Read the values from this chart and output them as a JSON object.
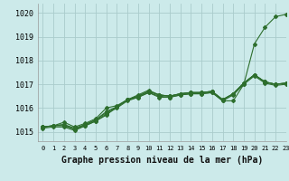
{
  "title": "Graphe pression niveau de la mer (hPa)",
  "xlim": [
    -0.5,
    23
  ],
  "ylim": [
    1014.6,
    1020.4
  ],
  "yticks": [
    1015,
    1016,
    1017,
    1018,
    1019,
    1020
  ],
  "xticks": [
    0,
    1,
    2,
    3,
    4,
    5,
    6,
    7,
    8,
    9,
    10,
    11,
    12,
    13,
    14,
    15,
    16,
    17,
    18,
    19,
    20,
    21,
    22,
    23
  ],
  "bg_color": "#cceaea",
  "grid_color": "#aacccc",
  "line_color": "#2d6e2d",
  "lines": [
    [
      1015.2,
      1015.25,
      1015.25,
      1015.1,
      1015.25,
      1015.45,
      1015.7,
      1016.05,
      1016.35,
      1016.45,
      1016.65,
      1016.5,
      1016.45,
      1016.55,
      1016.6,
      1016.6,
      1016.65,
      1016.3,
      1016.3,
      1017.0,
      1018.7,
      1019.4,
      1019.85,
      1019.95
    ],
    [
      1015.2,
      1015.25,
      1015.3,
      1015.1,
      1015.3,
      1015.5,
      1015.8,
      1016.05,
      1016.35,
      1016.5,
      1016.7,
      1016.55,
      1016.5,
      1016.6,
      1016.65,
      1016.65,
      1016.7,
      1016.35,
      1016.6,
      1017.05,
      1017.4,
      1017.1,
      1017.0,
      1017.05
    ],
    [
      1015.2,
      1015.25,
      1015.3,
      1015.15,
      1015.3,
      1015.5,
      1015.85,
      1016.05,
      1016.35,
      1016.5,
      1016.7,
      1016.55,
      1016.5,
      1016.6,
      1016.65,
      1016.65,
      1016.7,
      1016.35,
      1016.6,
      1017.05,
      1017.4,
      1017.1,
      1017.0,
      1017.05
    ],
    [
      1015.2,
      1015.25,
      1015.4,
      1015.2,
      1015.35,
      1015.55,
      1016.0,
      1016.1,
      1016.35,
      1016.55,
      1016.75,
      1016.55,
      1016.5,
      1016.6,
      1016.65,
      1016.65,
      1016.7,
      1016.35,
      1016.6,
      1017.05,
      1017.4,
      1017.1,
      1017.0,
      1017.05
    ],
    [
      1015.15,
      1015.2,
      1015.2,
      1015.05,
      1015.25,
      1015.45,
      1015.75,
      1016.0,
      1016.3,
      1016.45,
      1016.65,
      1016.45,
      1016.45,
      1016.55,
      1016.6,
      1016.6,
      1016.65,
      1016.3,
      1016.55,
      1017.0,
      1017.35,
      1017.05,
      1016.95,
      1017.0
    ]
  ]
}
